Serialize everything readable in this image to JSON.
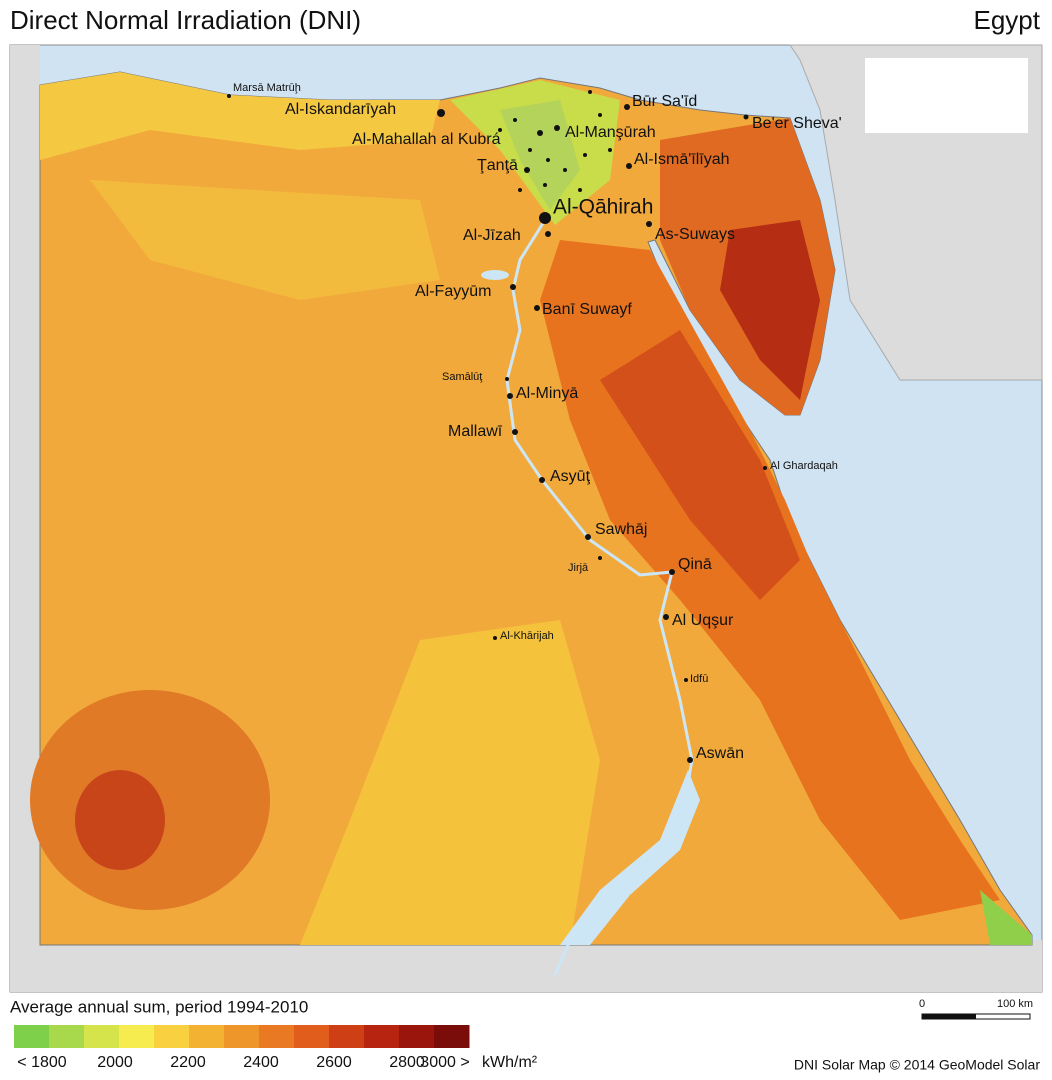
{
  "title": "Direct Normal Irradiation (DNI)",
  "country": "Egypt",
  "cities": [
    {
      "label": "Marsā Matrūḩ"
    },
    {
      "label": "Al-Iskandarīyah"
    },
    {
      "label": "Būr Sa'īd"
    },
    {
      "label": "Be'er Sheva'"
    },
    {
      "label": "Al-Mahallah al Kubrá"
    },
    {
      "label": "Al-Manşūrah"
    },
    {
      "label": "Ţanţā"
    },
    {
      "label": "Al-Ismā'īlīyah"
    },
    {
      "label": "Al-Qāhirah"
    },
    {
      "label": "Al-Jīzah"
    },
    {
      "label": "As-Suways"
    },
    {
      "label": "Al-Fayyūm"
    },
    {
      "label": "Banī Suwayf"
    },
    {
      "label": "Samālūţ"
    },
    {
      "label": "Al-Minyā"
    },
    {
      "label": "Mallawī"
    },
    {
      "label": "Asyūţ"
    },
    {
      "label": "Al Ghardaqah"
    },
    {
      "label": "Sawhāj"
    },
    {
      "label": "Jirjā"
    },
    {
      "label": "Qinā"
    },
    {
      "label": "Al Uqşur"
    },
    {
      "label": "Al-Khārijah"
    },
    {
      "label": "Idfū"
    },
    {
      "label": "Aswān"
    }
  ],
  "legend": {
    "title": "Average annual sum, period 1994-2010",
    "colors": [
      "#7ed04b",
      "#a8d94c",
      "#d6e44c",
      "#f7ec4f",
      "#f8d040",
      "#f4b233",
      "#ef962b",
      "#e97a23",
      "#e05d1c",
      "#cf3f15",
      "#b7240f",
      "#9a150c",
      "#7a0d0a"
    ],
    "labels": [
      "< 1800",
      "2000",
      "2200",
      "2400",
      "2600",
      "2800",
      "3000 >"
    ],
    "unit": "kWh/m²"
  },
  "scale_bar": {
    "labels": [
      "0",
      "100 km"
    ]
  },
  "credit": "DNI Solar Map © 2014 GeoModel Solar"
}
